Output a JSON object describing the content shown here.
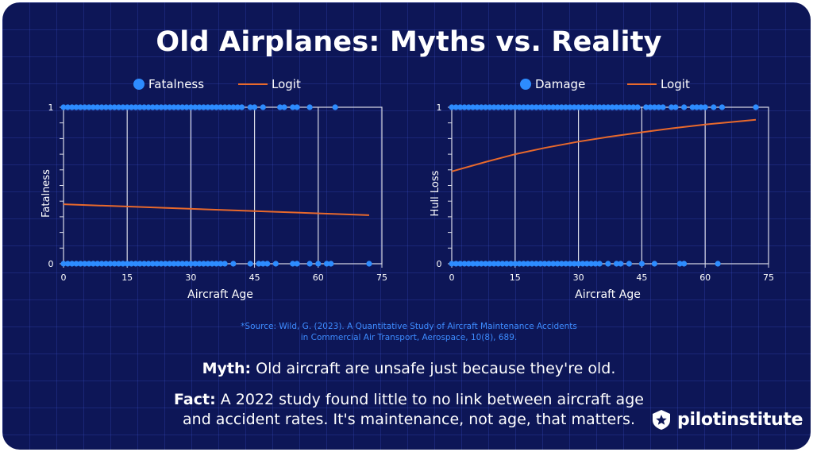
{
  "title": "Old Airplanes: Myths vs. Reality",
  "chart_data": [
    {
      "type": "scatter",
      "title": "",
      "xlabel": "Aircraft Age",
      "ylabel": "Fatalness",
      "xlim": [
        0,
        75
      ],
      "ylim": [
        0,
        1
      ],
      "xticks": [
        "0",
        "15",
        "30",
        "45",
        "60",
        "75"
      ],
      "yticks": [
        "0",
        "1"
      ],
      "legend": [
        "Fatalness",
        "Logit"
      ],
      "series": [
        {
          "name": "Fatalness",
          "kind": "points",
          "y_one_x": [
            0,
            1,
            2,
            3,
            4,
            5,
            6,
            7,
            8,
            9,
            10,
            11,
            12,
            13,
            14,
            15,
            16,
            17,
            18,
            19,
            20,
            21,
            22,
            23,
            24,
            25,
            26,
            27,
            28,
            29,
            30,
            31,
            32,
            33,
            34,
            35,
            36,
            37,
            38,
            39,
            40,
            41,
            42,
            44,
            45,
            47,
            51,
            52,
            54,
            55,
            58,
            64
          ],
          "y_zero_x": [
            0,
            1,
            2,
            3,
            4,
            5,
            6,
            7,
            8,
            9,
            10,
            11,
            12,
            13,
            14,
            15,
            16,
            17,
            18,
            19,
            20,
            21,
            22,
            23,
            24,
            25,
            26,
            27,
            28,
            29,
            30,
            31,
            32,
            33,
            34,
            35,
            36,
            37,
            38,
            40,
            44,
            46,
            47,
            48,
            50,
            54,
            55,
            58,
            60,
            62,
            63,
            72
          ]
        },
        {
          "name": "Logit",
          "kind": "line",
          "x": [
            0,
            72
          ],
          "y": [
            0.38,
            0.31
          ]
        }
      ]
    },
    {
      "type": "scatter",
      "title": "",
      "xlabel": "Aircraft Age",
      "ylabel": "Hull Loss",
      "xlim": [
        0,
        75
      ],
      "ylim": [
        0,
        1
      ],
      "xticks": [
        "0",
        "15",
        "30",
        "45",
        "60",
        "75"
      ],
      "yticks": [
        "0",
        "1"
      ],
      "legend": [
        "Damage",
        "Logit"
      ],
      "series": [
        {
          "name": "Damage",
          "kind": "points",
          "y_one_x": [
            0,
            1,
            2,
            3,
            4,
            5,
            6,
            7,
            8,
            9,
            10,
            11,
            12,
            13,
            14,
            15,
            16,
            17,
            18,
            19,
            20,
            21,
            22,
            23,
            24,
            25,
            26,
            27,
            28,
            29,
            30,
            31,
            32,
            33,
            34,
            35,
            36,
            37,
            38,
            39,
            40,
            41,
            42,
            43,
            44,
            46,
            47,
            48,
            49,
            50,
            52,
            53,
            55,
            57,
            58,
            59,
            60,
            62,
            64,
            72
          ],
          "y_zero_x": [
            0,
            1,
            2,
            3,
            4,
            5,
            6,
            7,
            8,
            9,
            10,
            11,
            12,
            13,
            14,
            15,
            16,
            17,
            18,
            19,
            20,
            21,
            22,
            23,
            24,
            25,
            26,
            27,
            28,
            29,
            30,
            31,
            32,
            33,
            34,
            35,
            37,
            39,
            40,
            42,
            45,
            48,
            54,
            55,
            63
          ]
        },
        {
          "name": "Logit",
          "kind": "line",
          "x": [
            0,
            8,
            15,
            22,
            30,
            37,
            45,
            52,
            60,
            66,
            72
          ],
          "y": [
            0.59,
            0.65,
            0.7,
            0.74,
            0.78,
            0.81,
            0.84,
            0.865,
            0.89,
            0.905,
            0.92
          ]
        }
      ]
    }
  ],
  "source": {
    "line1": "*Source: Wild, G. (2023). A Quantitative Study of Aircraft Maintenance Accidents",
    "line2": "in Commercial Air Transport, Aerospace, 10(8), 689."
  },
  "myth": {
    "label": "Myth:",
    "text": " Old aircraft are unsafe just because they're old."
  },
  "fact": {
    "label": "Fact:",
    "line1": " A 2022 study found little to no link between aircraft age",
    "line2": "and accident rates. It's maintenance, not age, that matters."
  },
  "brand": {
    "name": "pilotinstitute"
  },
  "colors": {
    "background": "#0d1657",
    "dot": "#2d8cff",
    "logit": "#e8692c",
    "axis": "#d9dbe8",
    "source": "#3d8cff"
  }
}
